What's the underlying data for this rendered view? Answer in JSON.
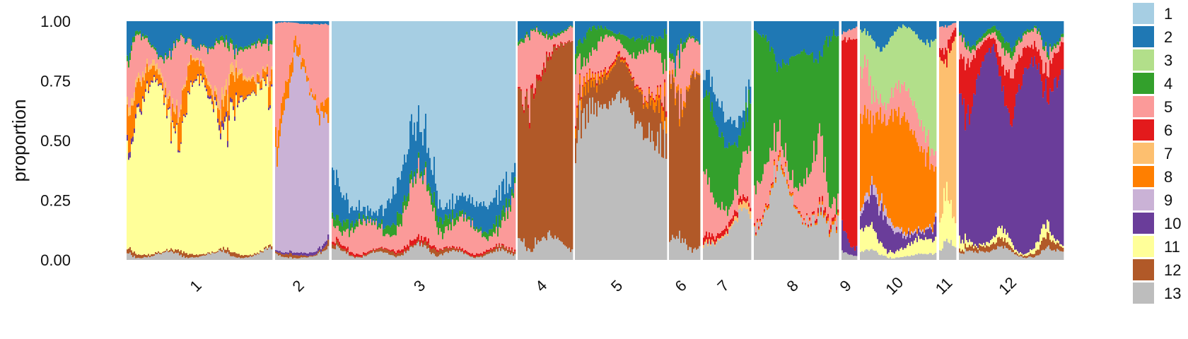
{
  "chart_data": {
    "type": "bar",
    "subtype": "stacked-proportion (admixture/structure plot)",
    "title": "",
    "xlabel": "",
    "ylabel": "proportion",
    "ylim": [
      0,
      1
    ],
    "yticks": [
      "0.00",
      "0.25",
      "0.50",
      "0.75",
      "1.00"
    ],
    "xtick_rotation_deg": -45,
    "grid": false,
    "legend_position": "right",
    "legend": [
      "1",
      "2",
      "3",
      "4",
      "5",
      "6",
      "7",
      "8",
      "9",
      "10",
      "11",
      "12",
      "13"
    ],
    "component_colors": {
      "1": "#A6CEE3",
      "2": "#1F78B4",
      "3": "#B2DF8A",
      "4": "#33A02C",
      "5": "#FB9A99",
      "6": "#E31A1C",
      "7": "#FDBF6F",
      "8": "#FF7F00",
      "9": "#CAB2D6",
      "10": "#6A3D9A",
      "11": "#FFFF99",
      "12": "#B15928",
      "13": "#BDBDBD"
    },
    "stack_order": [
      "13",
      "12",
      "11",
      "10",
      "9",
      "8",
      "7",
      "6",
      "5",
      "4",
      "3",
      "2",
      "1"
    ],
    "categories": [
      "1",
      "2",
      "3",
      "4",
      "5",
      "6",
      "7",
      "8",
      "9",
      "10",
      "11",
      "12"
    ],
    "series_by_group": [
      {
        "group": "1",
        "approx_mean_proportions": {
          "11": 0.64,
          "8": 0.07,
          "5": 0.12,
          "2": 0.1,
          "7": 0.02,
          "12": 0.01,
          "13": 0.02,
          "4": 0.01,
          "10": 0.01
        }
      },
      {
        "group": "2",
        "approx_mean_proportions": {
          "9": 0.66,
          "5": 0.24,
          "8": 0.05,
          "13": 0.02,
          "12": 0.01,
          "10": 0.01,
          "2": 0.01
        }
      },
      {
        "group": "3",
        "approx_mean_proportions": {
          "1": 0.7,
          "2": 0.1,
          "5": 0.12,
          "4": 0.03,
          "13": 0.03,
          "6": 0.01,
          "12": 0.01
        }
      },
      {
        "group": "4",
        "approx_mean_proportions": {
          "12": 0.77,
          "5": 0.1,
          "13": 0.07,
          "2": 0.04,
          "4": 0.01,
          "6": 0.01
        }
      },
      {
        "group": "5",
        "approx_mean_proportions": {
          "13": 0.6,
          "12": 0.13,
          "5": 0.12,
          "2": 0.06,
          "4": 0.06,
          "6": 0.01,
          "8": 0.02
        }
      },
      {
        "group": "6",
        "approx_mean_proportions": {
          "12": 0.66,
          "13": 0.1,
          "5": 0.11,
          "2": 0.1,
          "8": 0.01,
          "4": 0.02
        }
      },
      {
        "group": "7",
        "approx_mean_proportions": {
          "1": 0.32,
          "4": 0.28,
          "5": 0.15,
          "13": 0.11,
          "2": 0.1,
          "7": 0.02,
          "6": 0.02
        }
      },
      {
        "group": "8",
        "approx_mean_proportions": {
          "4": 0.5,
          "13": 0.22,
          "5": 0.14,
          "2": 0.12,
          "6": 0.01,
          "8": 0.01
        }
      },
      {
        "group": "9",
        "approx_mean_proportions": {
          "6": 0.8,
          "10": 0.1,
          "5": 0.05,
          "2": 0.03,
          "13": 0.02
        }
      },
      {
        "group": "10",
        "approx_mean_proportions": {
          "8": 0.4,
          "3": 0.26,
          "5": 0.12,
          "10": 0.07,
          "2": 0.06,
          "11": 0.05,
          "9": 0.02,
          "13": 0.02
        }
      },
      {
        "group": "11",
        "approx_mean_proportions": {
          "7": 0.75,
          "11": 0.08,
          "6": 0.06,
          "5": 0.05,
          "13": 0.04,
          "2": 0.02
        }
      },
      {
        "group": "12",
        "approx_mean_proportions": {
          "10": 0.7,
          "6": 0.1,
          "5": 0.05,
          "2": 0.06,
          "4": 0.02,
          "12": 0.02,
          "11": 0.02,
          "13": 0.03
        }
      }
    ]
  }
}
